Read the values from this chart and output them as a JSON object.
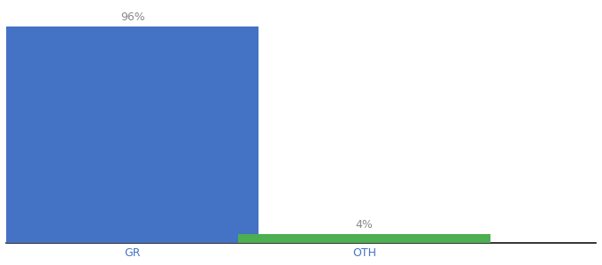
{
  "categories": [
    "GR",
    "OTH"
  ],
  "values": [
    96,
    4
  ],
  "bar_colors": [
    "#4472C4",
    "#4CAF50"
  ],
  "bar_labels": [
    "96%",
    "4%"
  ],
  "ylim": [
    0,
    105
  ],
  "background_color": "#ffffff",
  "label_fontsize": 9,
  "tick_fontsize": 9,
  "bar_width": 0.6,
  "x_positions": [
    0.3,
    0.85
  ],
  "xlim": [
    0.0,
    1.4
  ],
  "tick_color": "#4472C4",
  "label_color": "#888888",
  "spine_color": "#111111"
}
